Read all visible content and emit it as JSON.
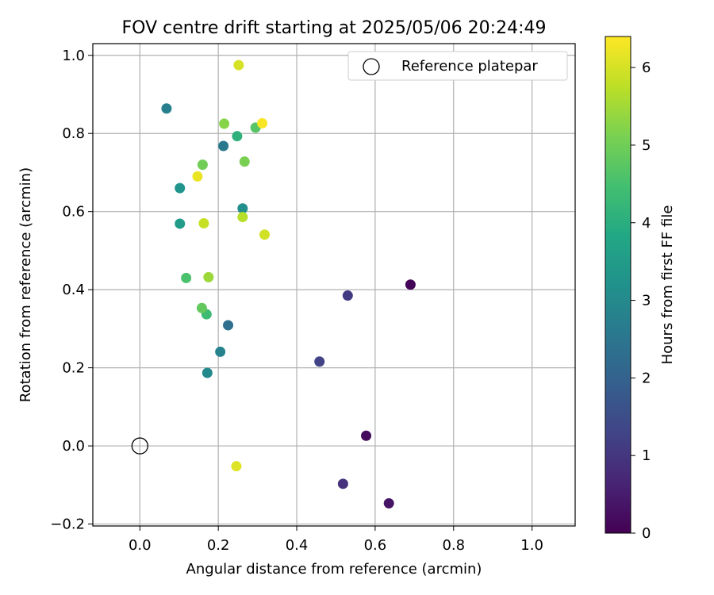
{
  "chart_data": {
    "type": "scatter",
    "title": "FOV centre drift starting at 2025/05/06 20:24:49",
    "xlabel": "Angular distance from reference (arcmin)",
    "ylabel": "Rotation from reference (arcmin)",
    "xlim": [
      -0.12,
      1.11
    ],
    "ylim": [
      -0.205,
      1.03
    ],
    "x_ticks": [
      0.0,
      0.2,
      0.4,
      0.6,
      0.8,
      1.0
    ],
    "x_tick_labels": [
      "0.0",
      "0.2",
      "0.4",
      "0.6",
      "0.8",
      "1.0"
    ],
    "y_ticks": [
      -0.2,
      0.0,
      0.2,
      0.4,
      0.6,
      0.8,
      1.0
    ],
    "y_tick_labels": [
      "−0.2",
      "0.0",
      "0.2",
      "0.4",
      "0.6",
      "0.8",
      "1.0"
    ],
    "grid": true,
    "legend": {
      "placement": "top-right",
      "entries": [
        {
          "label": "Reference platepar",
          "marker": "open-circle"
        }
      ]
    },
    "reference_point": {
      "x": 0.0,
      "y": 0.0
    },
    "colorbar": {
      "label": "Hours from first FF file",
      "colormap": "viridis",
      "range": [
        0,
        6.4
      ],
      "ticks": [
        0,
        1,
        2,
        3,
        4,
        5,
        6
      ],
      "tick_labels": [
        "0",
        "1",
        "2",
        "3",
        "4",
        "5",
        "6"
      ]
    },
    "points": [
      {
        "x": 0.69,
        "y": 0.413,
        "hours": 0.05
      },
      {
        "x": 0.577,
        "y": 0.026,
        "hours": 0.2
      },
      {
        "x": 0.635,
        "y": -0.147,
        "hours": 0.35
      },
      {
        "x": 0.518,
        "y": -0.097,
        "hours": 0.9
      },
      {
        "x": 0.53,
        "y": 0.385,
        "hours": 1.1
      },
      {
        "x": 0.458,
        "y": 0.216,
        "hours": 1.25
      },
      {
        "x": 0.225,
        "y": 0.309,
        "hours": 2.35
      },
      {
        "x": 0.213,
        "y": 0.768,
        "hours": 2.55
      },
      {
        "x": 0.068,
        "y": 0.864,
        "hours": 2.75
      },
      {
        "x": 0.205,
        "y": 0.241,
        "hours": 2.85
      },
      {
        "x": 0.172,
        "y": 0.187,
        "hours": 3.0
      },
      {
        "x": 0.262,
        "y": 0.608,
        "hours": 3.15
      },
      {
        "x": 0.102,
        "y": 0.66,
        "hours": 3.3
      },
      {
        "x": 0.102,
        "y": 0.569,
        "hours": 3.5
      },
      {
        "x": 0.248,
        "y": 0.793,
        "hours": 4.1
      },
      {
        "x": 0.17,
        "y": 0.337,
        "hours": 4.35
      },
      {
        "x": 0.118,
        "y": 0.43,
        "hours": 4.55
      },
      {
        "x": 0.295,
        "y": 0.815,
        "hours": 4.7
      },
      {
        "x": 0.158,
        "y": 0.353,
        "hours": 4.85
      },
      {
        "x": 0.16,
        "y": 0.72,
        "hours": 5.0
      },
      {
        "x": 0.267,
        "y": 0.728,
        "hours": 5.1
      },
      {
        "x": 0.215,
        "y": 0.825,
        "hours": 5.25
      },
      {
        "x": 0.175,
        "y": 0.432,
        "hours": 5.45
      },
      {
        "x": 0.262,
        "y": 0.586,
        "hours": 5.7
      },
      {
        "x": 0.163,
        "y": 0.57,
        "hours": 5.85
      },
      {
        "x": 0.318,
        "y": 0.541,
        "hours": 5.95
      },
      {
        "x": 0.252,
        "y": 0.975,
        "hours": 6.0
      },
      {
        "x": 0.246,
        "y": -0.052,
        "hours": 6.1
      },
      {
        "x": 0.147,
        "y": 0.69,
        "hours": 6.2
      },
      {
        "x": 0.312,
        "y": 0.826,
        "hours": 6.35
      }
    ]
  }
}
